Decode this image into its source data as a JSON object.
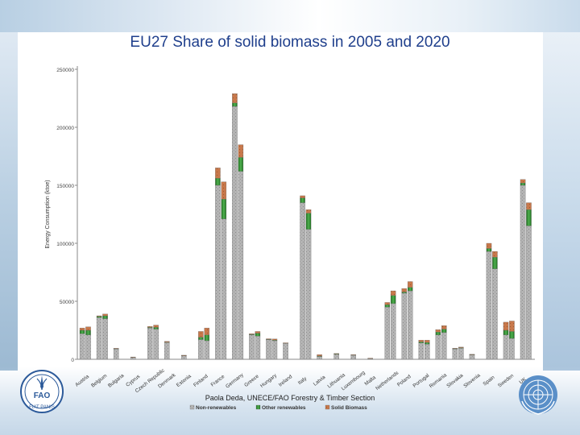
{
  "page": {
    "title": "EU27 Share of solid biomass in 2005 and 2020",
    "credit": "Paola Deda, UNECE/FAO Forestry & Timber Section",
    "fao_text": "FIAT PANIS",
    "fao_letters": "FAO"
  },
  "colors": {
    "title": "#1f3f8c",
    "non_renewables": "#b4b4b4",
    "other_renewables": "#2e8b2e",
    "solid_biomass": "#c8784b",
    "axis": "#888888"
  },
  "chart_data": {
    "type": "bar",
    "stacked": true,
    "title": "EU27 Share of solid biomass in 2005 and 2020",
    "ylabel": "Energy Consumption (ktoe)",
    "ylim": [
      0,
      250000
    ],
    "yticks": [
      0,
      50000,
      100000,
      150000,
      200000,
      250000
    ],
    "ytick_labels": [
      "0",
      "50000",
      "100000",
      "150000",
      "200000",
      "250000"
    ],
    "categories": [
      "Austria",
      "Belgium",
      "Bulgaria",
      "Cyprus",
      "Czech Republic",
      "Denmark",
      "Estonia",
      "Finland",
      "France",
      "Germany",
      "Greece",
      "Hungary",
      "Ireland",
      "Italy",
      "Latvia",
      "Lithuania",
      "Luxembourg",
      "Malta",
      "Netherlands",
      "Poland",
      "Portugal",
      "Romania",
      "Slovakia",
      "Slovenia",
      "Spain",
      "Sweden",
      "UK"
    ],
    "bar_groups": [
      {
        "label": "Austria",
        "bars": [
          [
            22000,
            3000,
            2000
          ],
          [
            21000,
            4000,
            3000
          ]
        ]
      },
      {
        "label": "Belgium",
        "bars": [
          [
            36000,
            1000,
            500
          ],
          [
            35000,
            2500,
            1500
          ]
        ]
      },
      {
        "label": "Bulgaria",
        "bars": [
          [
            9000,
            300,
            200
          ]
        ]
      },
      {
        "label": "Cyprus",
        "bars": [
          [
            1800,
            100,
            100
          ]
        ]
      },
      {
        "label": "Czech Republic",
        "bars": [
          [
            27000,
            500,
            800
          ],
          [
            26000,
            1500,
            2000
          ]
        ]
      },
      {
        "label": "Denmark",
        "bars": [
          [
            14500,
            300,
            700
          ]
        ]
      },
      {
        "label": "Estonia",
        "bars": [
          [
            3300,
            100,
            100
          ]
        ]
      },
      {
        "label": "Finland",
        "bars": [
          [
            17000,
            2000,
            5000
          ],
          [
            16000,
            5000,
            6000
          ]
        ]
      },
      {
        "label": "France",
        "bars": [
          [
            150000,
            6000,
            9000
          ],
          [
            121000,
            17000,
            15000
          ]
        ]
      },
      {
        "label": "Germany",
        "bars": [
          [
            218000,
            3000,
            8000
          ],
          [
            162000,
            12000,
            11000
          ]
        ]
      },
      {
        "label": "Greece",
        "bars": [
          [
            21000,
            500,
            500
          ],
          [
            20000,
            2500,
            1500
          ]
        ]
      },
      {
        "label": "Hungary",
        "bars": [
          [
            17000,
            200,
            500
          ],
          [
            16000,
            500,
            1000
          ]
        ]
      },
      {
        "label": "Ireland",
        "bars": [
          [
            14000,
            100,
            100
          ]
        ]
      },
      {
        "label": "Italy",
        "bars": [
          [
            135000,
            4000,
            2000
          ],
          [
            112000,
            14000,
            3000
          ]
        ]
      },
      {
        "label": "Latvia",
        "bars": [
          [
            2500,
            300,
            1200
          ]
        ]
      },
      {
        "label": "Lithuania",
        "bars": [
          [
            4500,
            100,
            400
          ]
        ]
      },
      {
        "label": "Luxembourg",
        "bars": [
          [
            3800,
            50,
            100
          ]
        ]
      },
      {
        "label": "Malta",
        "bars": [
          [
            900,
            50,
            50
          ]
        ]
      },
      {
        "label": "Netherlands",
        "bars": [
          [
            45000,
            2000,
            2000
          ],
          [
            48000,
            7000,
            4000
          ]
        ]
      },
      {
        "label": "Poland",
        "bars": [
          [
            57000,
            1000,
            3000
          ],
          [
            59000,
            3000,
            5000
          ]
        ]
      },
      {
        "label": "Portugal",
        "bars": [
          [
            14000,
            1000,
            1500
          ],
          [
            13000,
            1500,
            2000
          ]
        ]
      },
      {
        "label": "Romania",
        "bars": [
          [
            21000,
            2500,
            2000
          ],
          [
            23000,
            3000,
            3000
          ]
        ]
      },
      {
        "label": "Slovakia",
        "bars": [
          [
            9000,
            300,
            300
          ],
          [
            9500,
            500,
            500
          ]
        ]
      },
      {
        "label": "Slovenia",
        "bars": [
          [
            4000,
            100,
            200
          ]
        ]
      },
      {
        "label": "Spain",
        "bars": [
          [
            93000,
            2500,
            4500
          ],
          [
            78000,
            10000,
            5000
          ]
        ]
      },
      {
        "label": "Sweden",
        "bars": [
          [
            21000,
            4000,
            7000
          ],
          [
            18000,
            6000,
            9000
          ]
        ]
      },
      {
        "label": "UK",
        "bars": [
          [
            150000,
            2000,
            3000
          ],
          [
            115000,
            14000,
            6000
          ]
        ]
      }
    ],
    "legend": [
      "Non-renewables",
      "Other renewables",
      "Solid Biomass"
    ],
    "legend_position": "bottom"
  }
}
